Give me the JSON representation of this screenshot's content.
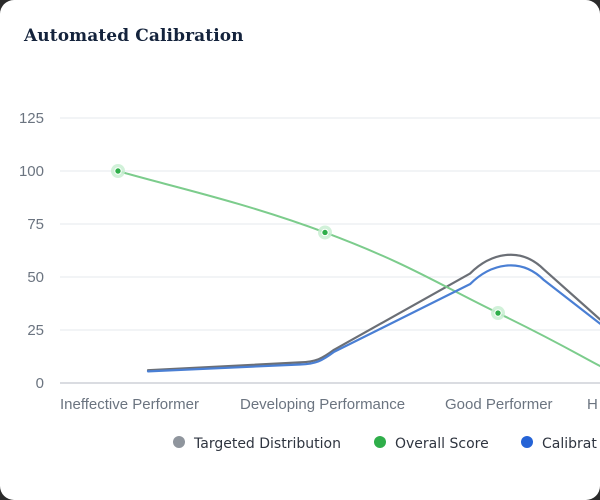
{
  "card": {
    "title": "Automated Calibration"
  },
  "chart_data": {
    "type": "line",
    "title": "Automated Calibration",
    "categories": [
      "Ineffective Performer",
      "Developing Performance",
      "Good Performer",
      "H"
    ],
    "ylim": [
      0,
      125
    ],
    "yticks": [
      0,
      25,
      50,
      75,
      100,
      125
    ],
    "grid": true,
    "legend_placement": "bottom",
    "series": [
      {
        "name": "Targeted Distribution",
        "color": "#6b6f76",
        "values": [
          6,
          10,
          62,
          30
        ],
        "markers": false
      },
      {
        "name": "Overall Score",
        "color": "#7ccc8c",
        "marker_color": "#2fae4a",
        "values": [
          100,
          71,
          33,
          8
        ],
        "markers": true
      },
      {
        "name": "Calibrat",
        "color": "#4a7fd4",
        "marker_color": "#2563d6",
        "values": [
          5.5,
          9,
          57,
          28
        ],
        "markers": false
      }
    ]
  }
}
